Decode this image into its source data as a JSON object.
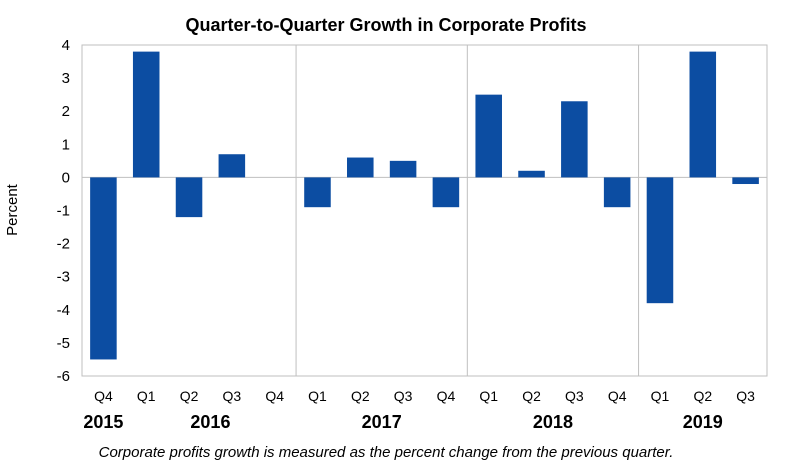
{
  "chart_data": {
    "type": "bar",
    "title": "Quarter-to-Quarter Growth in Corporate Profits",
    "ylabel": "Percent",
    "xlabel": "",
    "ylim": [
      -6,
      4
    ],
    "yticks": [
      4,
      3,
      2,
      1,
      0,
      -1,
      -2,
      -3,
      -4,
      -5,
      -6
    ],
    "grid": "vertical separators between years",
    "categories": [
      "Q4",
      "Q1",
      "Q2",
      "Q3",
      "Q4",
      "Q1",
      "Q2",
      "Q3",
      "Q4",
      "Q1",
      "Q2",
      "Q3",
      "Q4",
      "Q1",
      "Q2",
      "Q3"
    ],
    "values": [
      -5.5,
      3.8,
      -1.2,
      0.7,
      0.0,
      -0.9,
      0.6,
      0.5,
      -0.9,
      2.5,
      0.2,
      2.3,
      -0.9,
      -3.8,
      3.8,
      -0.2
    ],
    "year_groups": [
      {
        "label": "2015",
        "start": 0,
        "end": 0
      },
      {
        "label": "2016",
        "start": 1,
        "end": 4
      },
      {
        "label": "2017",
        "start": 5,
        "end": 8
      },
      {
        "label": "2018",
        "start": 9,
        "end": 12
      },
      {
        "label": "2019",
        "start": 13,
        "end": 15
      }
    ],
    "bar_color": "#0c4da2",
    "footnote": "Corporate profits growth is measured as the percent change from the previous quarter."
  }
}
